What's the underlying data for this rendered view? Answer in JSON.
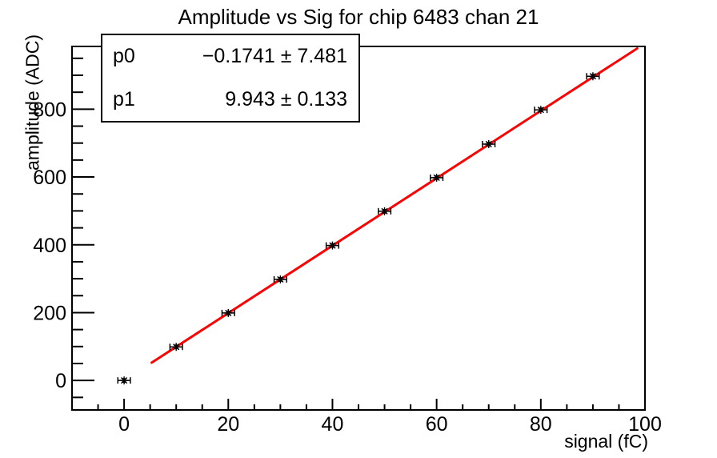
{
  "chart_data": {
    "type": "scatter",
    "title": "Amplitude vs Sig for chip 6483 chan 21",
    "xlabel": "signal (fC)",
    "ylabel": "amplitude (ADC)",
    "xlim": [
      -10,
      100
    ],
    "ylim": [
      -87,
      985
    ],
    "grid": false,
    "x": [
      0,
      10,
      20,
      30,
      40,
      50,
      60,
      70,
      80,
      90
    ],
    "y": [
      0,
      99,
      199,
      298,
      398,
      499,
      598,
      697,
      798,
      897
    ],
    "x_err": 1.2,
    "y_err": 5,
    "marker": "asterisk",
    "marker_color": "#000000",
    "x_major_ticks": [
      0,
      20,
      40,
      60,
      80,
      100
    ],
    "x_minor_step": 5,
    "y_major_ticks": [
      0,
      200,
      400,
      600,
      800
    ],
    "y_minor_step": 50,
    "fit": {
      "type": "linear",
      "p0": -0.1741,
      "p1": 9.943,
      "range": [
        5.3,
        98.5
      ],
      "color": "#ff0000",
      "rows": [
        {
          "name": "p0",
          "value": "−0.1741 ± 7.481"
        },
        {
          "name": "p1",
          "value": "9.943 ± 0.133"
        }
      ]
    },
    "stats_box_position": "top-left"
  },
  "colors": {
    "background": "#ffffff",
    "axis": "#000000",
    "fit_line": "#ff0000"
  }
}
